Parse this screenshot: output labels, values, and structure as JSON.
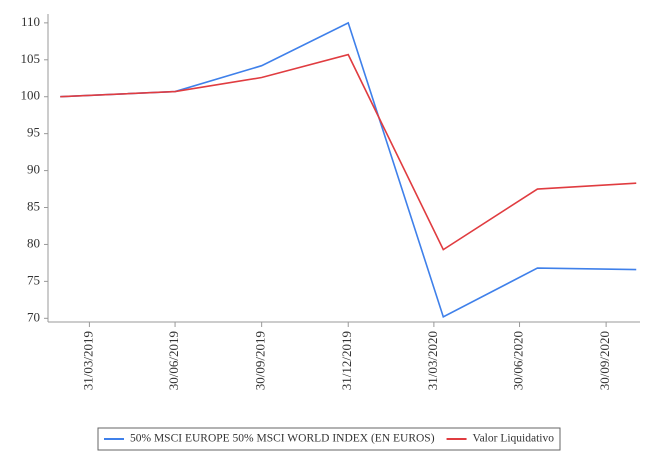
{
  "chart_data": {
    "type": "line",
    "x": [
      "2019-02-28",
      "2019-06-30",
      "2019-09-30",
      "2019-12-31",
      "2020-04-10",
      "2020-07-19",
      "2020-11-01"
    ],
    "xlim": [
      "2019-02-15",
      "2020-11-05"
    ],
    "xticks": [
      {
        "value": "2019-03-31",
        "label": "31/03/2019"
      },
      {
        "value": "2019-06-30",
        "label": "30/06/2019"
      },
      {
        "value": "2019-09-30",
        "label": "30/09/2019"
      },
      {
        "value": "2019-12-31",
        "label": "31/12/2019"
      },
      {
        "value": "2020-03-31",
        "label": "31/03/2020"
      },
      {
        "value": "2020-06-30",
        "label": "30/06/2020"
      },
      {
        "value": "2020-09-30",
        "label": "30/09/2020"
      }
    ],
    "ylim": [
      69.5,
      111.2
    ],
    "yticks": [
      70,
      75,
      80,
      85,
      90,
      95,
      100,
      105,
      110
    ],
    "series": [
      {
        "name": "50% MSCI EUROPE 50% MSCI WORLD INDEX (EN EUROS)",
        "color": "#3f80ea",
        "values": [
          100,
          100.7,
          104.2,
          110,
          70.2,
          76.8,
          76.6
        ]
      },
      {
        "name": "Valor Liquidativo",
        "color": "#e03c40",
        "values": [
          100,
          100.7,
          102.6,
          105.7,
          79.3,
          87.5,
          88.3
        ]
      }
    ],
    "legend": "bottom"
  }
}
